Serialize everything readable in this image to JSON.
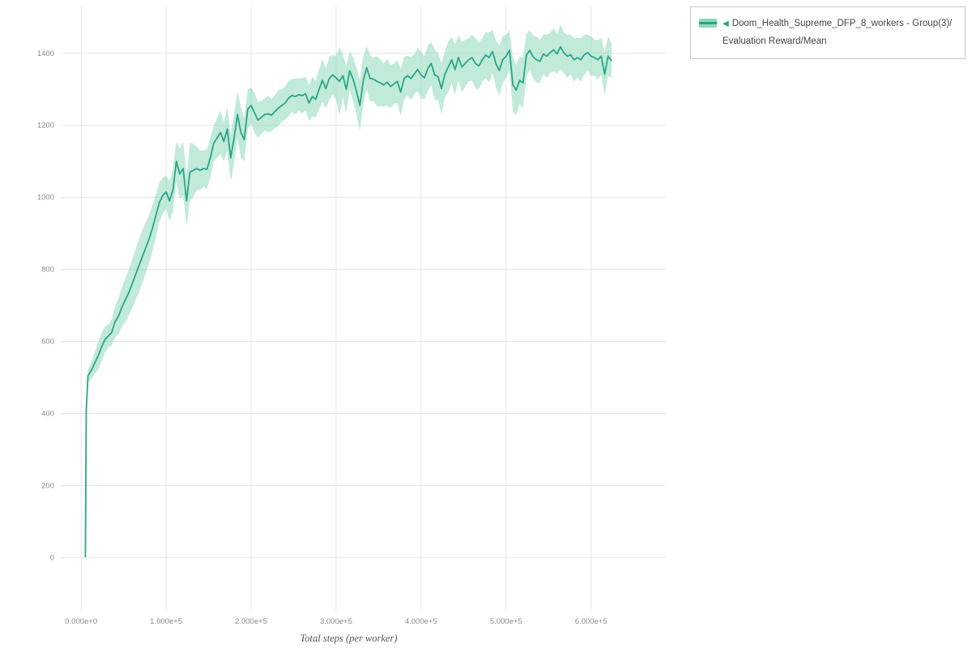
{
  "legend": {
    "marker": "◀",
    "label": "Doom_Health_Supreme_DFP_8_workers - Group(3)/Evaluation Reward/Mean"
  },
  "colors": {
    "line": "#2aa586",
    "band": "#8ed8ba",
    "grid": "#e7e7e7",
    "tick_text": "#8a8a8a",
    "axis_title": "#555555"
  },
  "chart_data": {
    "type": "line",
    "title": "",
    "xlabel": "Total steps (per worker)",
    "ylabel": "",
    "grid": true,
    "legend_position": "top-right",
    "xlim": [
      -24000,
      688000
    ],
    "ylim": [
      -150,
      1530
    ],
    "x_tick_values": [
      0,
      100000,
      200000,
      300000,
      400000,
      500000,
      600000
    ],
    "x_tick_labels": [
      "0.000e+0",
      "1.000e+5",
      "2.000e+5",
      "3.000e+5",
      "4.000e+5",
      "5.000e+5",
      "6.000e+5"
    ],
    "y_ticks": [
      0,
      200,
      400,
      600,
      800,
      1000,
      1200,
      1400
    ],
    "series": [
      {
        "name": "Doom_Health_Supreme_DFP_8_workers - Group(3)/Evaluation Reward/Mean",
        "color": "#2aa586",
        "band_color": "#8ed8ba",
        "band_opacity": 0.55,
        "points_format": [
          "x",
          "mean",
          "spread"
        ],
        "points": [
          [
            5000,
            2,
            3
          ],
          [
            6000,
            410,
            12
          ],
          [
            8000,
            505,
            18
          ],
          [
            12000,
            520,
            24
          ],
          [
            16000,
            540,
            30
          ],
          [
            20000,
            560,
            38
          ],
          [
            24000,
            585,
            40
          ],
          [
            28000,
            605,
            36
          ],
          [
            32000,
            615,
            32
          ],
          [
            36000,
            625,
            36
          ],
          [
            40000,
            655,
            44
          ],
          [
            44000,
            670,
            50
          ],
          [
            48000,
            695,
            55
          ],
          [
            52000,
            715,
            60
          ],
          [
            56000,
            735,
            64
          ],
          [
            60000,
            760,
            68
          ],
          [
            64000,
            785,
            70
          ],
          [
            68000,
            810,
            74
          ],
          [
            72000,
            835,
            74
          ],
          [
            76000,
            860,
            70
          ],
          [
            80000,
            885,
            68
          ],
          [
            84000,
            915,
            64
          ],
          [
            88000,
            950,
            60
          ],
          [
            92000,
            985,
            55
          ],
          [
            96000,
            1005,
            50
          ],
          [
            100000,
            1015,
            46
          ],
          [
            104000,
            990,
            55
          ],
          [
            108000,
            1020,
            60
          ],
          [
            112000,
            1100,
            55
          ],
          [
            116000,
            1065,
            70
          ],
          [
            120000,
            1080,
            75
          ],
          [
            124000,
            990,
            70
          ],
          [
            128000,
            1070,
            80
          ],
          [
            132000,
            1075,
            74
          ],
          [
            136000,
            1080,
            60
          ],
          [
            140000,
            1075,
            55
          ],
          [
            144000,
            1080,
            50
          ],
          [
            148000,
            1078,
            55
          ],
          [
            152000,
            1110,
            55
          ],
          [
            156000,
            1150,
            50
          ],
          [
            160000,
            1165,
            55
          ],
          [
            164000,
            1180,
            60
          ],
          [
            168000,
            1155,
            55
          ],
          [
            172000,
            1190,
            60
          ],
          [
            176000,
            1110,
            65
          ],
          [
            180000,
            1165,
            70
          ],
          [
            184000,
            1230,
            64
          ],
          [
            188000,
            1180,
            70
          ],
          [
            192000,
            1160,
            60
          ],
          [
            196000,
            1245,
            55
          ],
          [
            200000,
            1255,
            50
          ],
          [
            204000,
            1235,
            55
          ],
          [
            208000,
            1215,
            50
          ],
          [
            212000,
            1222,
            46
          ],
          [
            216000,
            1230,
            45
          ],
          [
            220000,
            1232,
            50
          ],
          [
            224000,
            1228,
            45
          ],
          [
            228000,
            1238,
            46
          ],
          [
            232000,
            1248,
            50
          ],
          [
            236000,
            1255,
            45
          ],
          [
            240000,
            1262,
            46
          ],
          [
            244000,
            1275,
            50
          ],
          [
            248000,
            1283,
            45
          ],
          [
            252000,
            1280,
            50
          ],
          [
            256000,
            1285,
            45
          ],
          [
            260000,
            1282,
            50
          ],
          [
            264000,
            1288,
            46
          ],
          [
            268000,
            1262,
            50
          ],
          [
            272000,
            1280,
            55
          ],
          [
            276000,
            1272,
            50
          ],
          [
            280000,
            1300,
            55
          ],
          [
            284000,
            1325,
            60
          ],
          [
            288000,
            1302,
            55
          ],
          [
            292000,
            1330,
            60
          ],
          [
            296000,
            1340,
            55
          ],
          [
            300000,
            1332,
            60
          ],
          [
            304000,
            1322,
            95
          ],
          [
            308000,
            1338,
            60
          ],
          [
            312000,
            1300,
            65
          ],
          [
            316000,
            1352,
            55
          ],
          [
            320000,
            1328,
            60
          ],
          [
            324000,
            1295,
            65
          ],
          [
            328000,
            1255,
            70
          ],
          [
            332000,
            1325,
            65
          ],
          [
            336000,
            1360,
            60
          ],
          [
            340000,
            1330,
            65
          ],
          [
            344000,
            1328,
            60
          ],
          [
            348000,
            1322,
            70
          ],
          [
            352000,
            1318,
            65
          ],
          [
            356000,
            1312,
            60
          ],
          [
            360000,
            1320,
            65
          ],
          [
            364000,
            1308,
            60
          ],
          [
            368000,
            1315,
            55
          ],
          [
            372000,
            1322,
            60
          ],
          [
            376000,
            1292,
            65
          ],
          [
            380000,
            1330,
            60
          ],
          [
            384000,
            1338,
            55
          ],
          [
            388000,
            1330,
            60
          ],
          [
            392000,
            1342,
            55
          ],
          [
            396000,
            1355,
            60
          ],
          [
            400000,
            1340,
            65
          ],
          [
            404000,
            1332,
            60
          ],
          [
            408000,
            1358,
            64
          ],
          [
            412000,
            1372,
            60
          ],
          [
            416000,
            1340,
            70
          ],
          [
            420000,
            1335,
            65
          ],
          [
            424000,
            1302,
            70
          ],
          [
            428000,
            1342,
            65
          ],
          [
            432000,
            1362,
            70
          ],
          [
            436000,
            1382,
            64
          ],
          [
            440000,
            1355,
            70
          ],
          [
            444000,
            1388,
            64
          ],
          [
            448000,
            1362,
            70
          ],
          [
            452000,
            1372,
            65
          ],
          [
            456000,
            1382,
            60
          ],
          [
            460000,
            1388,
            64
          ],
          [
            464000,
            1372,
            70
          ],
          [
            468000,
            1365,
            65
          ],
          [
            472000,
            1382,
            60
          ],
          [
            476000,
            1395,
            64
          ],
          [
            480000,
            1388,
            70
          ],
          [
            484000,
            1405,
            60
          ],
          [
            488000,
            1372,
            65
          ],
          [
            492000,
            1352,
            70
          ],
          [
            496000,
            1382,
            65
          ],
          [
            500000,
            1392,
            60
          ],
          [
            504000,
            1408,
            55
          ],
          [
            508000,
            1312,
            75
          ],
          [
            512000,
            1298,
            70
          ],
          [
            516000,
            1325,
            65
          ],
          [
            520000,
            1318,
            70
          ],
          [
            524000,
            1395,
            60
          ],
          [
            528000,
            1408,
            55
          ],
          [
            532000,
            1390,
            60
          ],
          [
            536000,
            1382,
            64
          ],
          [
            540000,
            1378,
            60
          ],
          [
            544000,
            1398,
            55
          ],
          [
            548000,
            1392,
            60
          ],
          [
            552000,
            1402,
            55
          ],
          [
            556000,
            1410,
            60
          ],
          [
            560000,
            1398,
            55
          ],
          [
            564000,
            1418,
            62
          ],
          [
            568000,
            1402,
            56
          ],
          [
            572000,
            1392,
            60
          ],
          [
            576000,
            1396,
            55
          ],
          [
            580000,
            1382,
            60
          ],
          [
            584000,
            1388,
            55
          ],
          [
            588000,
            1382,
            60
          ],
          [
            592000,
            1396,
            55
          ],
          [
            596000,
            1402,
            50
          ],
          [
            600000,
            1392,
            55
          ],
          [
            604000,
            1388,
            50
          ],
          [
            608000,
            1382,
            55
          ],
          [
            612000,
            1392,
            50
          ],
          [
            616000,
            1342,
            60
          ],
          [
            620000,
            1392,
            55
          ],
          [
            624000,
            1380,
            50
          ]
        ]
      }
    ]
  }
}
